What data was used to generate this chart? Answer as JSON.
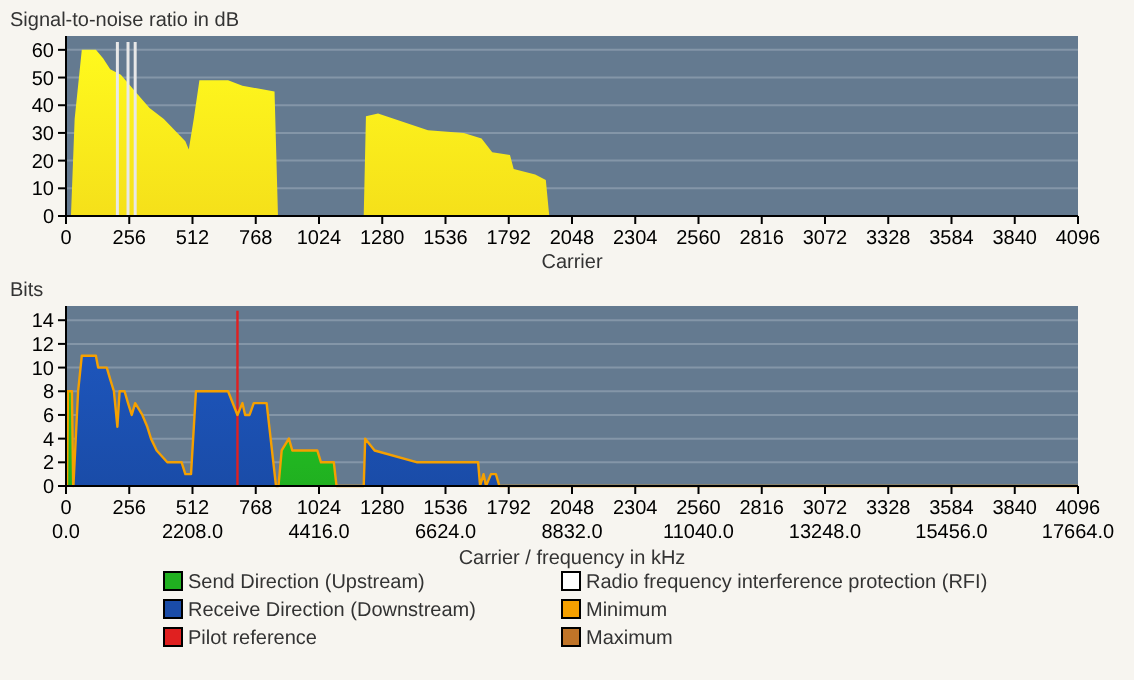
{
  "chart_data": [
    {
      "type": "area",
      "ylabel": "Signal-to-noise ratio in dB",
      "xlabel": "Carrier",
      "xlim": [
        0,
        4096
      ],
      "xticks": [
        0,
        256,
        512,
        768,
        1024,
        1280,
        1536,
        1792,
        2048,
        2304,
        2560,
        2816,
        3072,
        3328,
        3584,
        3840,
        4096
      ],
      "ylim": [
        0,
        65
      ],
      "yticks": [
        0,
        10,
        20,
        30,
        40,
        50,
        60
      ],
      "grid": "y",
      "series": [
        {
          "color": "#f5e01a",
          "x": [
            0,
            20,
            35,
            64,
            121,
            150,
            179,
            222,
            280,
            338,
            396,
            483,
            497,
            517,
            540,
            656,
            714,
            844,
            858,
            1205,
            1214,
            1263,
            1465,
            1610,
            1682,
            1725,
            1797,
            1812,
            1899,
            1942,
            1956,
            4096
          ],
          "values": [
            0,
            0,
            35,
            60,
            60,
            57,
            53,
            51,
            45,
            39,
            35,
            27,
            24,
            35,
            49,
            49,
            47,
            45,
            0,
            0,
            36,
            37,
            31,
            30,
            28,
            23,
            22,
            17,
            15,
            13,
            0,
            0
          ]
        }
      ],
      "ref_lines": [
        {
          "axis": "x",
          "value": 208,
          "color": "#e8e8e8"
        },
        {
          "axis": "x",
          "value": 251,
          "color": "#e8e8e8"
        },
        {
          "axis": "x",
          "value": 280,
          "color": "#e8e8e8"
        }
      ]
    },
    {
      "type": "area",
      "ylabel": "Bits",
      "xlabel": "Carrier / frequency in kHz",
      "xlim": [
        0,
        4096
      ],
      "xticks": [
        0,
        256,
        512,
        768,
        1024,
        1280,
        1536,
        1792,
        2048,
        2304,
        2560,
        2816,
        3072,
        3328,
        3584,
        3840,
        4096
      ],
      "x2lim": [
        0,
        17664
      ],
      "x2ticks": [
        {
          "value": 0,
          "label": "0.0"
        },
        {
          "value": 2208,
          "label": "2208.0"
        },
        {
          "value": 4416,
          "label": "4416.0"
        },
        {
          "value": 6624,
          "label": "6624.0"
        },
        {
          "value": 8832,
          "label": "8832.0"
        },
        {
          "value": 11040,
          "label": "11040.0"
        },
        {
          "value": 13248,
          "label": "13248.0"
        },
        {
          "value": 15456,
          "label": "15456.0"
        },
        {
          "value": 17664,
          "label": "17664.0"
        }
      ],
      "ylim": [
        0,
        15.2
      ],
      "yticks": [
        0,
        2,
        4,
        6,
        8,
        10,
        12,
        14
      ],
      "grid": "y",
      "legend": "bottom",
      "series": [
        {
          "name": "Send Direction (Upstream)",
          "color": "#20b020",
          "x": [
            4,
            8,
            24,
            29,
            400,
            860,
            873,
            902,
            916,
            1017,
            1032,
            1084,
            1095
          ],
          "values": [
            0,
            8,
            8,
            0,
            null,
            0,
            3,
            4,
            3,
            3,
            2,
            2,
            0
          ]
        },
        {
          "name": "Receive Direction (Downstream)",
          "color": "#1a4ca8",
          "x": [
            30,
            49,
            64,
            121,
            130,
            165,
            179,
            194,
            208,
            217,
            237,
            251,
            266,
            280,
            309,
            329,
            344,
            367,
            410,
            468,
            483,
            506,
            526,
            656,
            694,
            714,
            725,
            743,
            760,
            812,
            850,
            1000,
            1205,
            1211,
            1249,
            1422,
            1668,
            1676,
            1690,
            1700,
            1720,
            1740,
            1754
          ],
          "values": [
            0,
            8,
            11,
            11,
            10,
            10,
            9,
            8,
            5,
            8,
            8,
            7,
            6,
            7,
            6,
            5,
            4,
            3,
            2,
            2,
            1,
            1,
            8,
            8,
            6,
            7,
            6,
            6,
            7,
            7,
            0,
            null,
            0,
            4,
            3,
            2,
            2,
            0,
            1,
            0,
            1,
            1,
            0
          ]
        },
        {
          "name": "Pilot reference",
          "type": "line",
          "color": "#e02020",
          "x": [
            694,
            694
          ],
          "values": [
            0,
            14.8
          ]
        },
        {
          "name": "Radio frequency interference protection (RFI)",
          "type": "line",
          "color": "#ffffff"
        },
        {
          "name": "Minimum",
          "type": "line",
          "color": "#f5a000",
          "x": [
            0,
            4,
            8,
            24,
            29,
            30,
            49,
            64,
            121,
            130,
            165,
            179,
            194,
            208,
            217,
            237,
            251,
            266,
            280,
            309,
            329,
            344,
            367,
            410,
            468,
            483,
            506,
            526,
            656,
            694,
            714,
            725,
            743,
            760,
            812,
            850,
            860,
            873,
            902,
            916,
            1017,
            1032,
            1084,
            1095,
            1205,
            1211,
            1249,
            1422,
            1668,
            1676,
            1690,
            1700,
            1720,
            1740,
            1754,
            4096
          ],
          "values": [
            0,
            0,
            8,
            8,
            0,
            0,
            8,
            11,
            11,
            10,
            10,
            9,
            8,
            5,
            8,
            8,
            7,
            6,
            7,
            6,
            5,
            4,
            3,
            2,
            2,
            1,
            1,
            8,
            8,
            6,
            7,
            6,
            6,
            7,
            7,
            0,
            0,
            3,
            4,
            3,
            3,
            2,
            2,
            0,
            0,
            4,
            3,
            2,
            2,
            0,
            1,
            0,
            1,
            1,
            0,
            0
          ]
        },
        {
          "name": "Maximum",
          "type": "line",
          "color": "#c07428"
        }
      ]
    }
  ]
}
